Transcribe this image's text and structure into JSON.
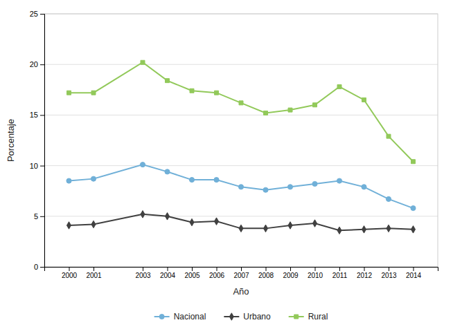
{
  "chart_data": {
    "type": "line",
    "x": [
      2000,
      2001,
      2003,
      2004,
      2005,
      2006,
      2007,
      2008,
      2009,
      2010,
      2011,
      2012,
      2013,
      2014
    ],
    "series": [
      {
        "name": "Nacional",
        "color": "#70B0D8",
        "marker": "circle",
        "values": [
          8.5,
          8.7,
          10.1,
          9.4,
          8.6,
          8.6,
          7.9,
          7.6,
          7.9,
          8.2,
          8.5,
          7.9,
          6.7,
          5.8
        ]
      },
      {
        "name": "Urbano",
        "color": "#404040",
        "marker": "diamond",
        "values": [
          4.1,
          4.2,
          5.2,
          5.0,
          4.4,
          4.5,
          3.8,
          3.8,
          4.1,
          4.3,
          3.6,
          3.7,
          3.8,
          3.7
        ]
      },
      {
        "name": "Rural",
        "color": "#92C95A",
        "marker": "square",
        "values": [
          17.2,
          17.2,
          20.2,
          18.4,
          17.4,
          17.2,
          16.2,
          15.2,
          15.5,
          16.0,
          17.8,
          16.5,
          12.9,
          10.4
        ]
      }
    ],
    "xlabel": "Año",
    "ylabel": "Porcentaje",
    "xlim": [
      1999,
      2015
    ],
    "xticks": [
      2000,
      2001,
      2003,
      2004,
      2005,
      2006,
      2007,
      2008,
      2009,
      2010,
      2011,
      2012,
      2013,
      2014
    ],
    "ylim": [
      0,
      25
    ],
    "yticks": [
      0,
      5,
      10,
      15,
      20,
      25
    ],
    "grid": true,
    "legend": "bottom"
  }
}
